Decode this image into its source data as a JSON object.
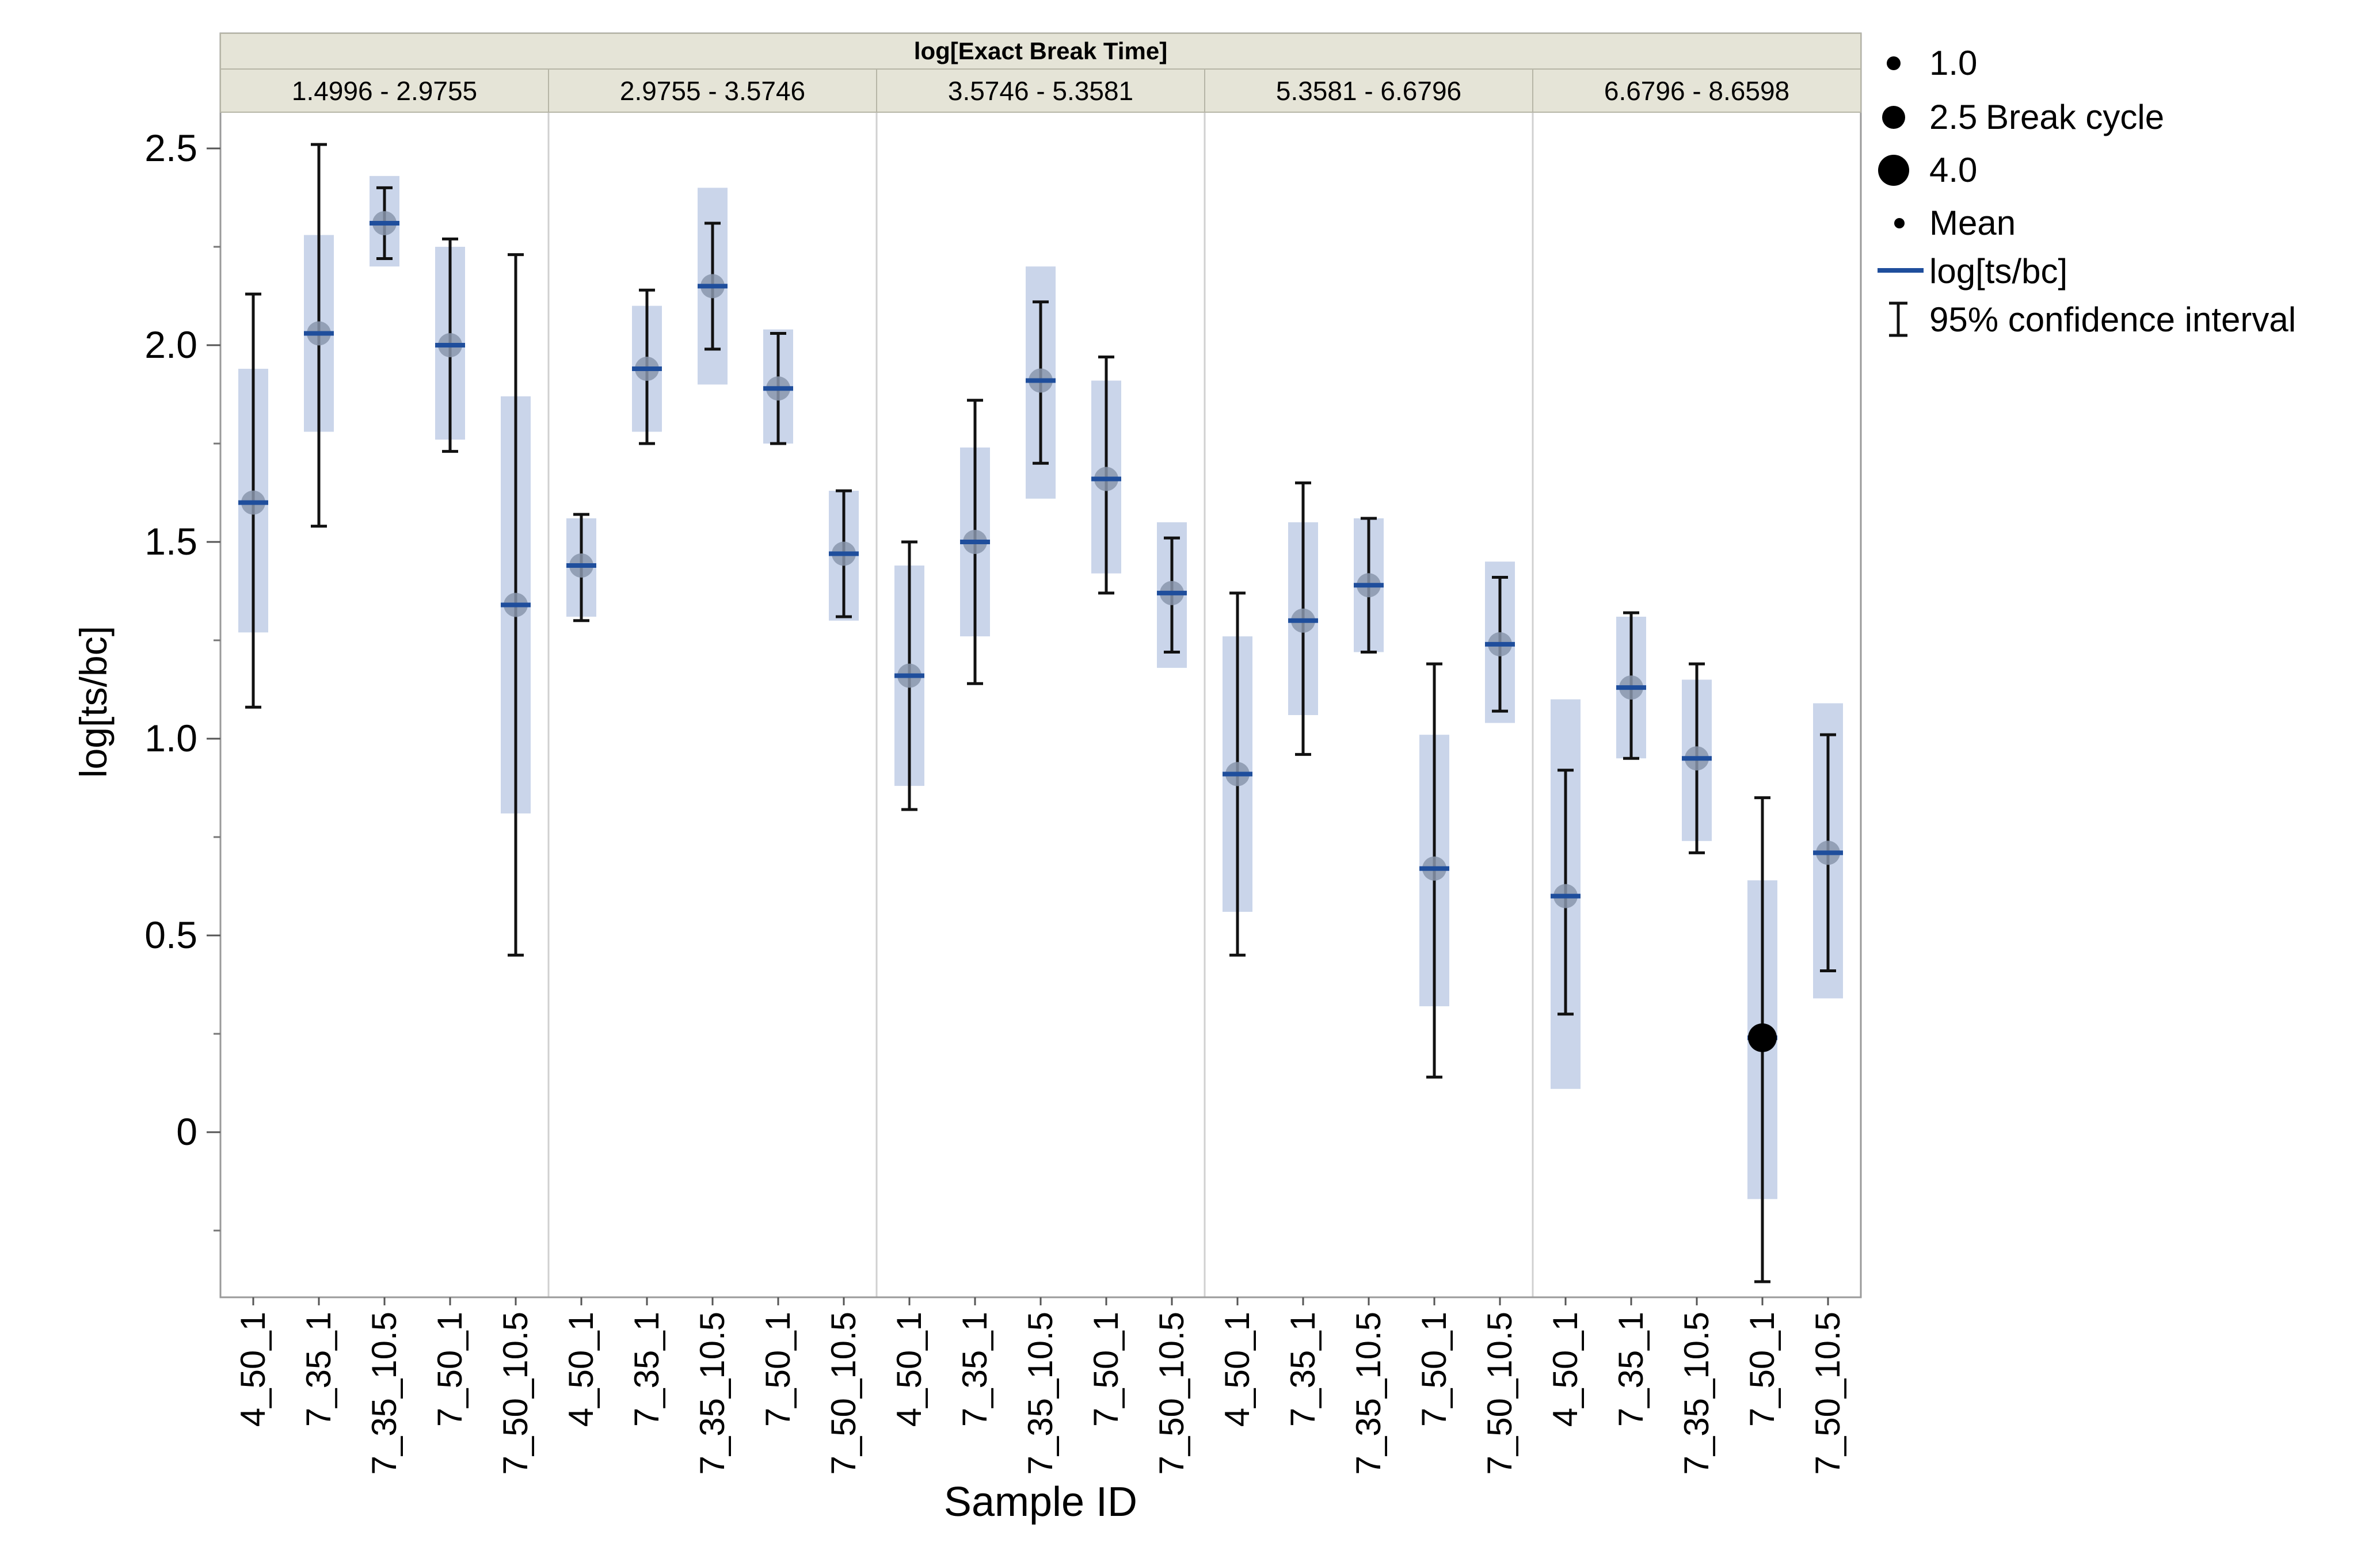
{
  "chart_data": {
    "type": "error-bar",
    "title": "log[Exact Break Time]",
    "ylabel": "log[ts/bc]",
    "xlabel": "Sample ID",
    "ylim": [
      -0.42,
      2.5
    ],
    "yticks": [
      0,
      0.5,
      1.0,
      1.5,
      2.0,
      2.5
    ],
    "ytick_labels": [
      "0",
      "0.5",
      "1.0",
      "1.5",
      "2.0",
      "2.5"
    ],
    "yminor_ticks": [
      -0.25,
      0.25,
      0.75,
      1.25,
      1.75,
      2.25
    ],
    "panels": [
      {
        "range_label": "1.4996 - 2.9755",
        "categories": [
          "4_50_1",
          "7_35_1",
          "7_35_10.5",
          "7_50_1",
          "7_50_10.5"
        ],
        "mean": [
          1.6,
          2.03,
          2.31,
          2.0,
          1.34
        ],
        "ci": [
          [
            1.08,
            2.13
          ],
          [
            1.54,
            2.51
          ],
          [
            2.22,
            2.4
          ],
          [
            1.73,
            2.27
          ],
          [
            0.45,
            2.23
          ]
        ],
        "band": [
          [
            1.27,
            1.94
          ],
          [
            1.78,
            2.28
          ],
          [
            2.2,
            2.43
          ],
          [
            1.76,
            2.25
          ],
          [
            0.81,
            1.87
          ]
        ]
      },
      {
        "range_label": "2.9755 - 3.5746",
        "categories": [
          "4_50_1",
          "7_35_1",
          "7_35_10.5",
          "7_50_1",
          "7_50_10.5"
        ],
        "mean": [
          1.44,
          1.94,
          2.15,
          1.89,
          1.47
        ],
        "ci": [
          [
            1.3,
            1.57
          ],
          [
            1.75,
            2.14
          ],
          [
            1.99,
            2.31
          ],
          [
            1.75,
            2.03
          ],
          [
            1.31,
            1.63
          ]
        ],
        "band": [
          [
            1.31,
            1.56
          ],
          [
            1.78,
            2.1
          ],
          [
            1.9,
            2.4
          ],
          [
            1.75,
            2.04
          ],
          [
            1.3,
            1.63
          ]
        ]
      },
      {
        "range_label": "3.5746 - 5.3581",
        "categories": [
          "4_50_1",
          "7_35_1",
          "7_35_10.5",
          "7_50_1",
          "7_50_10.5"
        ],
        "mean": [
          1.16,
          1.5,
          1.91,
          1.66,
          1.37
        ],
        "ci": [
          [
            0.82,
            1.5
          ],
          [
            1.14,
            1.86
          ],
          [
            1.7,
            2.11
          ],
          [
            1.37,
            1.97
          ],
          [
            1.22,
            1.51
          ]
        ],
        "band": [
          [
            0.88,
            1.44
          ],
          [
            1.26,
            1.74
          ],
          [
            1.61,
            2.2
          ],
          [
            1.42,
            1.91
          ],
          [
            1.18,
            1.55
          ]
        ]
      },
      {
        "range_label": "5.3581 - 6.6796",
        "categories": [
          "4_50_1",
          "7_35_1",
          "7_35_10.5",
          "7_50_1",
          "7_50_10.5"
        ],
        "mean": [
          0.91,
          1.3,
          1.39,
          0.67,
          1.24
        ],
        "ci": [
          [
            0.45,
            1.37
          ],
          [
            0.96,
            1.65
          ],
          [
            1.22,
            1.56
          ],
          [
            0.14,
            1.19
          ],
          [
            1.07,
            1.41
          ]
        ],
        "band": [
          [
            0.56,
            1.26
          ],
          [
            1.06,
            1.55
          ],
          [
            1.22,
            1.56
          ],
          [
            0.32,
            1.01
          ],
          [
            1.04,
            1.45
          ]
        ]
      },
      {
        "range_label": "6.6796 - 8.6598",
        "categories": [
          "4_50_1",
          "7_35_1",
          "7_35_10.5",
          "7_50_1",
          "7_50_10.5"
        ],
        "mean": [
          0.6,
          1.13,
          0.95,
          0.24,
          0.71
        ],
        "ci": [
          [
            0.3,
            0.92
          ],
          [
            0.95,
            1.32
          ],
          [
            0.71,
            1.19
          ],
          [
            -0.38,
            0.85
          ],
          [
            0.41,
            1.01
          ]
        ],
        "band": [
          [
            0.11,
            1.1
          ],
          [
            0.95,
            1.31
          ],
          [
            0.74,
            1.15
          ],
          [
            -0.17,
            0.64
          ],
          [
            0.34,
            1.09
          ]
        ],
        "break_cycle_markers": [
          {
            "category": "7_50_1",
            "value": 0.24,
            "size": "4.0"
          }
        ]
      }
    ],
    "legend": {
      "size_items": [
        {
          "value": "1.0",
          "label": ""
        },
        {
          "value": "2.5",
          "label": "Break cycle"
        },
        {
          "value": "4.0",
          "label": ""
        }
      ],
      "mean_label": "Mean",
      "line_label": "log[ts/bc]",
      "ci_label": "95% confidence interval",
      "placement": "right"
    }
  },
  "colors": {
    "band": "#cad5ea",
    "mean_line": "#1f4e9c",
    "ci": "#111111",
    "header_bg": "#e5e4d7",
    "divider": "#d0d0d0",
    "frame": "#9a9a9a",
    "text": "#000000"
  }
}
